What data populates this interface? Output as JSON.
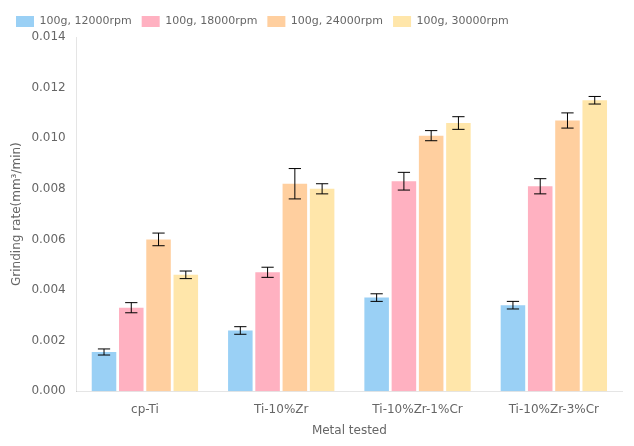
{
  "chart_data": {
    "type": "bar",
    "categories": [
      "cp-Ti",
      "Ti-10%Zr",
      "Ti-10%Zr-1%Cr",
      "Ti-10%Zr-3%Cr"
    ],
    "series": [
      {
        "name": "100g, 12000rpm",
        "values": [
          0.00155,
          0.0024,
          0.0037,
          0.0034
        ],
        "errors": [
          0.00012,
          0.00015,
          0.00015,
          0.00015
        ]
      },
      {
        "name": "100g, 18000rpm",
        "values": [
          0.0033,
          0.0047,
          0.0083,
          0.0081
        ],
        "errors": [
          0.0002,
          0.0002,
          0.00035,
          0.0003
        ]
      },
      {
        "name": "100g, 24000rpm",
        "values": [
          0.006,
          0.0082,
          0.0101,
          0.0107
        ],
        "errors": [
          0.00025,
          0.0006,
          0.0002,
          0.0003
        ]
      },
      {
        "name": "100g, 30000rpm",
        "values": [
          0.0046,
          0.008,
          0.0106,
          0.0115
        ],
        "errors": [
          0.00015,
          0.0002,
          0.00025,
          0.00015
        ]
      }
    ],
    "xlabel": "Metal tested",
    "ylabel": "Grinding rate(mm³/min)",
    "ylim": [
      0,
      0.014
    ],
    "yticks": [
      {
        "value": 0.0,
        "label": "0.000"
      },
      {
        "value": 0.002,
        "label": "0.002"
      },
      {
        "value": 0.004,
        "label": "0.004"
      },
      {
        "value": 0.006,
        "label": "0.006"
      },
      {
        "value": 0.008,
        "label": "0.008"
      },
      {
        "value": 0.01,
        "label": "0.010"
      },
      {
        "value": 0.012,
        "label": "0.012"
      },
      {
        "value": 0.014,
        "label": "0.014"
      }
    ],
    "grid": false,
    "legend": "upper left"
  }
}
